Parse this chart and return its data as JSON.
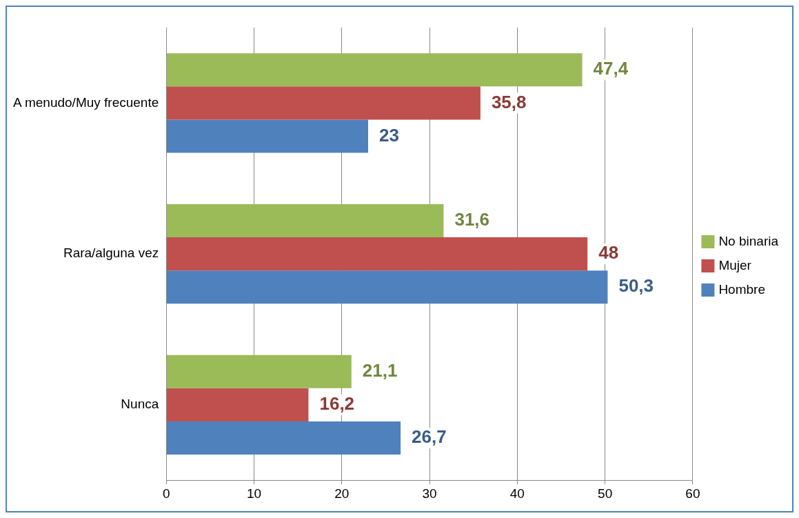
{
  "chart_data": {
    "type": "bar",
    "orientation": "horizontal",
    "categories": [
      "A menudo/Muy frecuente",
      "Rara/alguna vez",
      "Nunca"
    ],
    "series": [
      {
        "name": "No binaria",
        "color": "#9bbb59",
        "values": [
          47.4,
          31.6,
          21.1
        ],
        "value_labels": [
          "47,4",
          "31,6",
          "21,1"
        ]
      },
      {
        "name": "Mujer",
        "color": "#c0504d",
        "values": [
          35.8,
          48,
          16.2
        ],
        "value_labels": [
          "35,8",
          "48",
          "16,2"
        ]
      },
      {
        "name": "Hombre",
        "color": "#4f81bd",
        "values": [
          23,
          50.3,
          26.7
        ],
        "value_labels": [
          "23",
          "50,3",
          "26,7"
        ]
      }
    ],
    "xlim": [
      0,
      60
    ],
    "xticks": [
      0,
      10,
      20,
      30,
      40,
      50,
      60
    ],
    "grid": "x",
    "legend": "right"
  }
}
